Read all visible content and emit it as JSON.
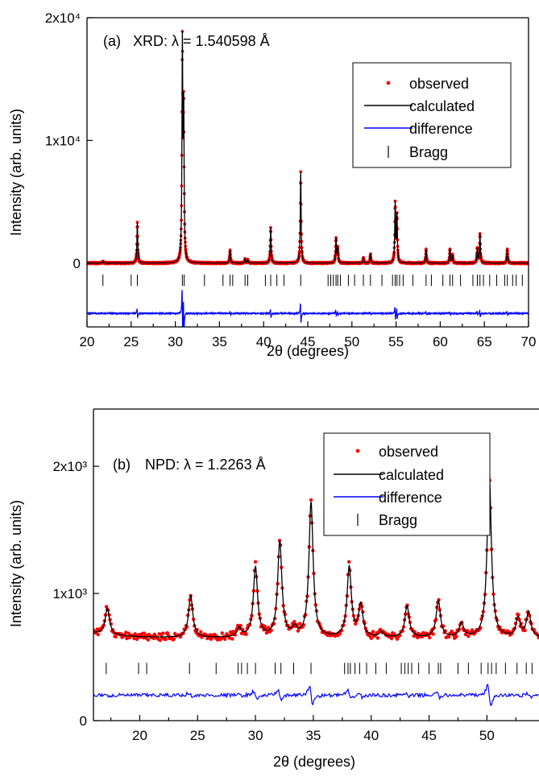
{
  "chart_data": [
    {
      "type": "line",
      "panel_label": "(a)",
      "annotation": "XRD: λ = 1.540598 Å",
      "xlabel": "2θ (degrees)",
      "ylabel": "Intensity (arb. units)",
      "xlim": [
        20,
        70
      ],
      "ylim": [
        -5200,
        20000
      ],
      "x_ticks": [
        20,
        25,
        30,
        35,
        40,
        45,
        50,
        55,
        60,
        65,
        70
      ],
      "x_tick_labels": [
        "20",
        "25",
        "30",
        "35",
        "40",
        "45",
        "50",
        "55",
        "60",
        "65",
        "70"
      ],
      "y_ticks": [
        0,
        10000,
        20000
      ],
      "y_tick_labels": [
        "0",
        "1x10⁴",
        "2x10⁴"
      ],
      "background": 0,
      "difference_offset": -4100,
      "bragg_level": -1400,
      "peaks": [
        {
          "x": 21.8,
          "y": 150
        },
        {
          "x": 25.7,
          "y": 3300
        },
        {
          "x": 30.8,
          "y": 17500
        },
        {
          "x": 30.95,
          "y": 12000
        },
        {
          "x": 36.2,
          "y": 1050
        },
        {
          "x": 37.9,
          "y": 350
        },
        {
          "x": 38.2,
          "y": 300
        },
        {
          "x": 40.8,
          "y": 2900
        },
        {
          "x": 44.2,
          "y": 7400
        },
        {
          "x": 48.2,
          "y": 2000
        },
        {
          "x": 48.4,
          "y": 1200
        },
        {
          "x": 51.3,
          "y": 450
        },
        {
          "x": 52.1,
          "y": 750
        },
        {
          "x": 54.9,
          "y": 4800
        },
        {
          "x": 55.1,
          "y": 3800
        },
        {
          "x": 58.4,
          "y": 1100
        },
        {
          "x": 61.1,
          "y": 1150
        },
        {
          "x": 61.4,
          "y": 650
        },
        {
          "x": 64.2,
          "y": 1200
        },
        {
          "x": 64.5,
          "y": 2400
        },
        {
          "x": 67.6,
          "y": 1150
        }
      ],
      "bragg_positions": [
        21.8,
        25.0,
        25.7,
        30.8,
        31.0,
        33.3,
        35.4,
        36.2,
        36.5,
        37.9,
        38.2,
        40.2,
        40.8,
        41.5,
        42.3,
        44.2,
        47.3,
        47.6,
        47.9,
        48.2,
        48.4,
        48.7,
        49.6,
        50.3,
        51.3,
        52.1,
        53.4,
        54.6,
        54.9,
        55.1,
        55.4,
        55.8,
        56.9,
        58.4,
        59.0,
        60.3,
        61.1,
        61.4,
        62.3,
        63.7,
        64.2,
        64.5,
        64.9,
        65.6,
        66.4,
        67.3,
        67.6,
        68.2,
        68.6,
        69.3
      ],
      "legend": {
        "items": [
          "observed",
          "calculated",
          "difference",
          "Bragg"
        ]
      },
      "series": [
        {
          "name": "observed",
          "color": "#ff0000",
          "style": "dots"
        },
        {
          "name": "calculated",
          "color": "#000000",
          "style": "line"
        },
        {
          "name": "difference",
          "color": "#0000ff",
          "style": "line"
        },
        {
          "name": "Bragg",
          "color": "#000000",
          "style": "ticks"
        }
      ]
    },
    {
      "type": "line",
      "panel_label": "(b)",
      "annotation": "NPD: λ = 1.2263 Å",
      "xlabel": "2θ (degrees)",
      "ylabel": "Intensity (arb. units)",
      "xlim": [
        16,
        54.5
      ],
      "ylim": [
        0,
        2450
      ],
      "x_ticks": [
        20,
        25,
        30,
        35,
        40,
        45,
        50
      ],
      "x_tick_labels": [
        "20",
        "25",
        "30",
        "35",
        "40",
        "45",
        "50"
      ],
      "y_ticks": [
        0,
        1000,
        2000
      ],
      "y_tick_labels": [
        "0",
        "1x10³",
        "2x10³"
      ],
      "background": 650,
      "difference_offset": 200,
      "bragg_level": 410,
      "peaks": [
        {
          "x": 17.2,
          "y": 860
        },
        {
          "x": 24.4,
          "y": 980
        },
        {
          "x": 28.6,
          "y": 720
        },
        {
          "x": 30.0,
          "y": 1200
        },
        {
          "x": 32.1,
          "y": 1400
        },
        {
          "x": 33.4,
          "y": 710
        },
        {
          "x": 34.8,
          "y": 1710
        },
        {
          "x": 38.1,
          "y": 1200
        },
        {
          "x": 39.1,
          "y": 900
        },
        {
          "x": 40.9,
          "y": 690
        },
        {
          "x": 43.1,
          "y": 900
        },
        {
          "x": 45.8,
          "y": 940
        },
        {
          "x": 47.8,
          "y": 760
        },
        {
          "x": 50.2,
          "y": 1940
        },
        {
          "x": 52.7,
          "y": 800
        },
        {
          "x": 53.6,
          "y": 850
        }
      ],
      "bragg_positions": [
        17.1,
        19.9,
        20.6,
        24.3,
        26.6,
        28.5,
        28.8,
        29.3,
        30.0,
        31.7,
        32.2,
        33.3,
        34.8,
        37.7,
        38.0,
        38.2,
        38.6,
        39.0,
        39.6,
        40.4,
        41.3,
        42.6,
        42.9,
        43.2,
        43.5,
        44.1,
        45.0,
        45.8,
        46.0,
        47.5,
        48.4,
        49.5,
        50.1,
        50.4,
        50.8,
        51.6,
        52.6,
        53.4,
        53.9
      ],
      "legend": {
        "items": [
          "observed",
          "calculated",
          "difference",
          "Bragg"
        ]
      },
      "series": [
        {
          "name": "observed",
          "color": "#ff0000",
          "style": "dots"
        },
        {
          "name": "calculated",
          "color": "#000000",
          "style": "line"
        },
        {
          "name": "difference",
          "color": "#0000ff",
          "style": "line"
        },
        {
          "name": "Bragg",
          "color": "#000000",
          "style": "ticks"
        }
      ]
    }
  ]
}
